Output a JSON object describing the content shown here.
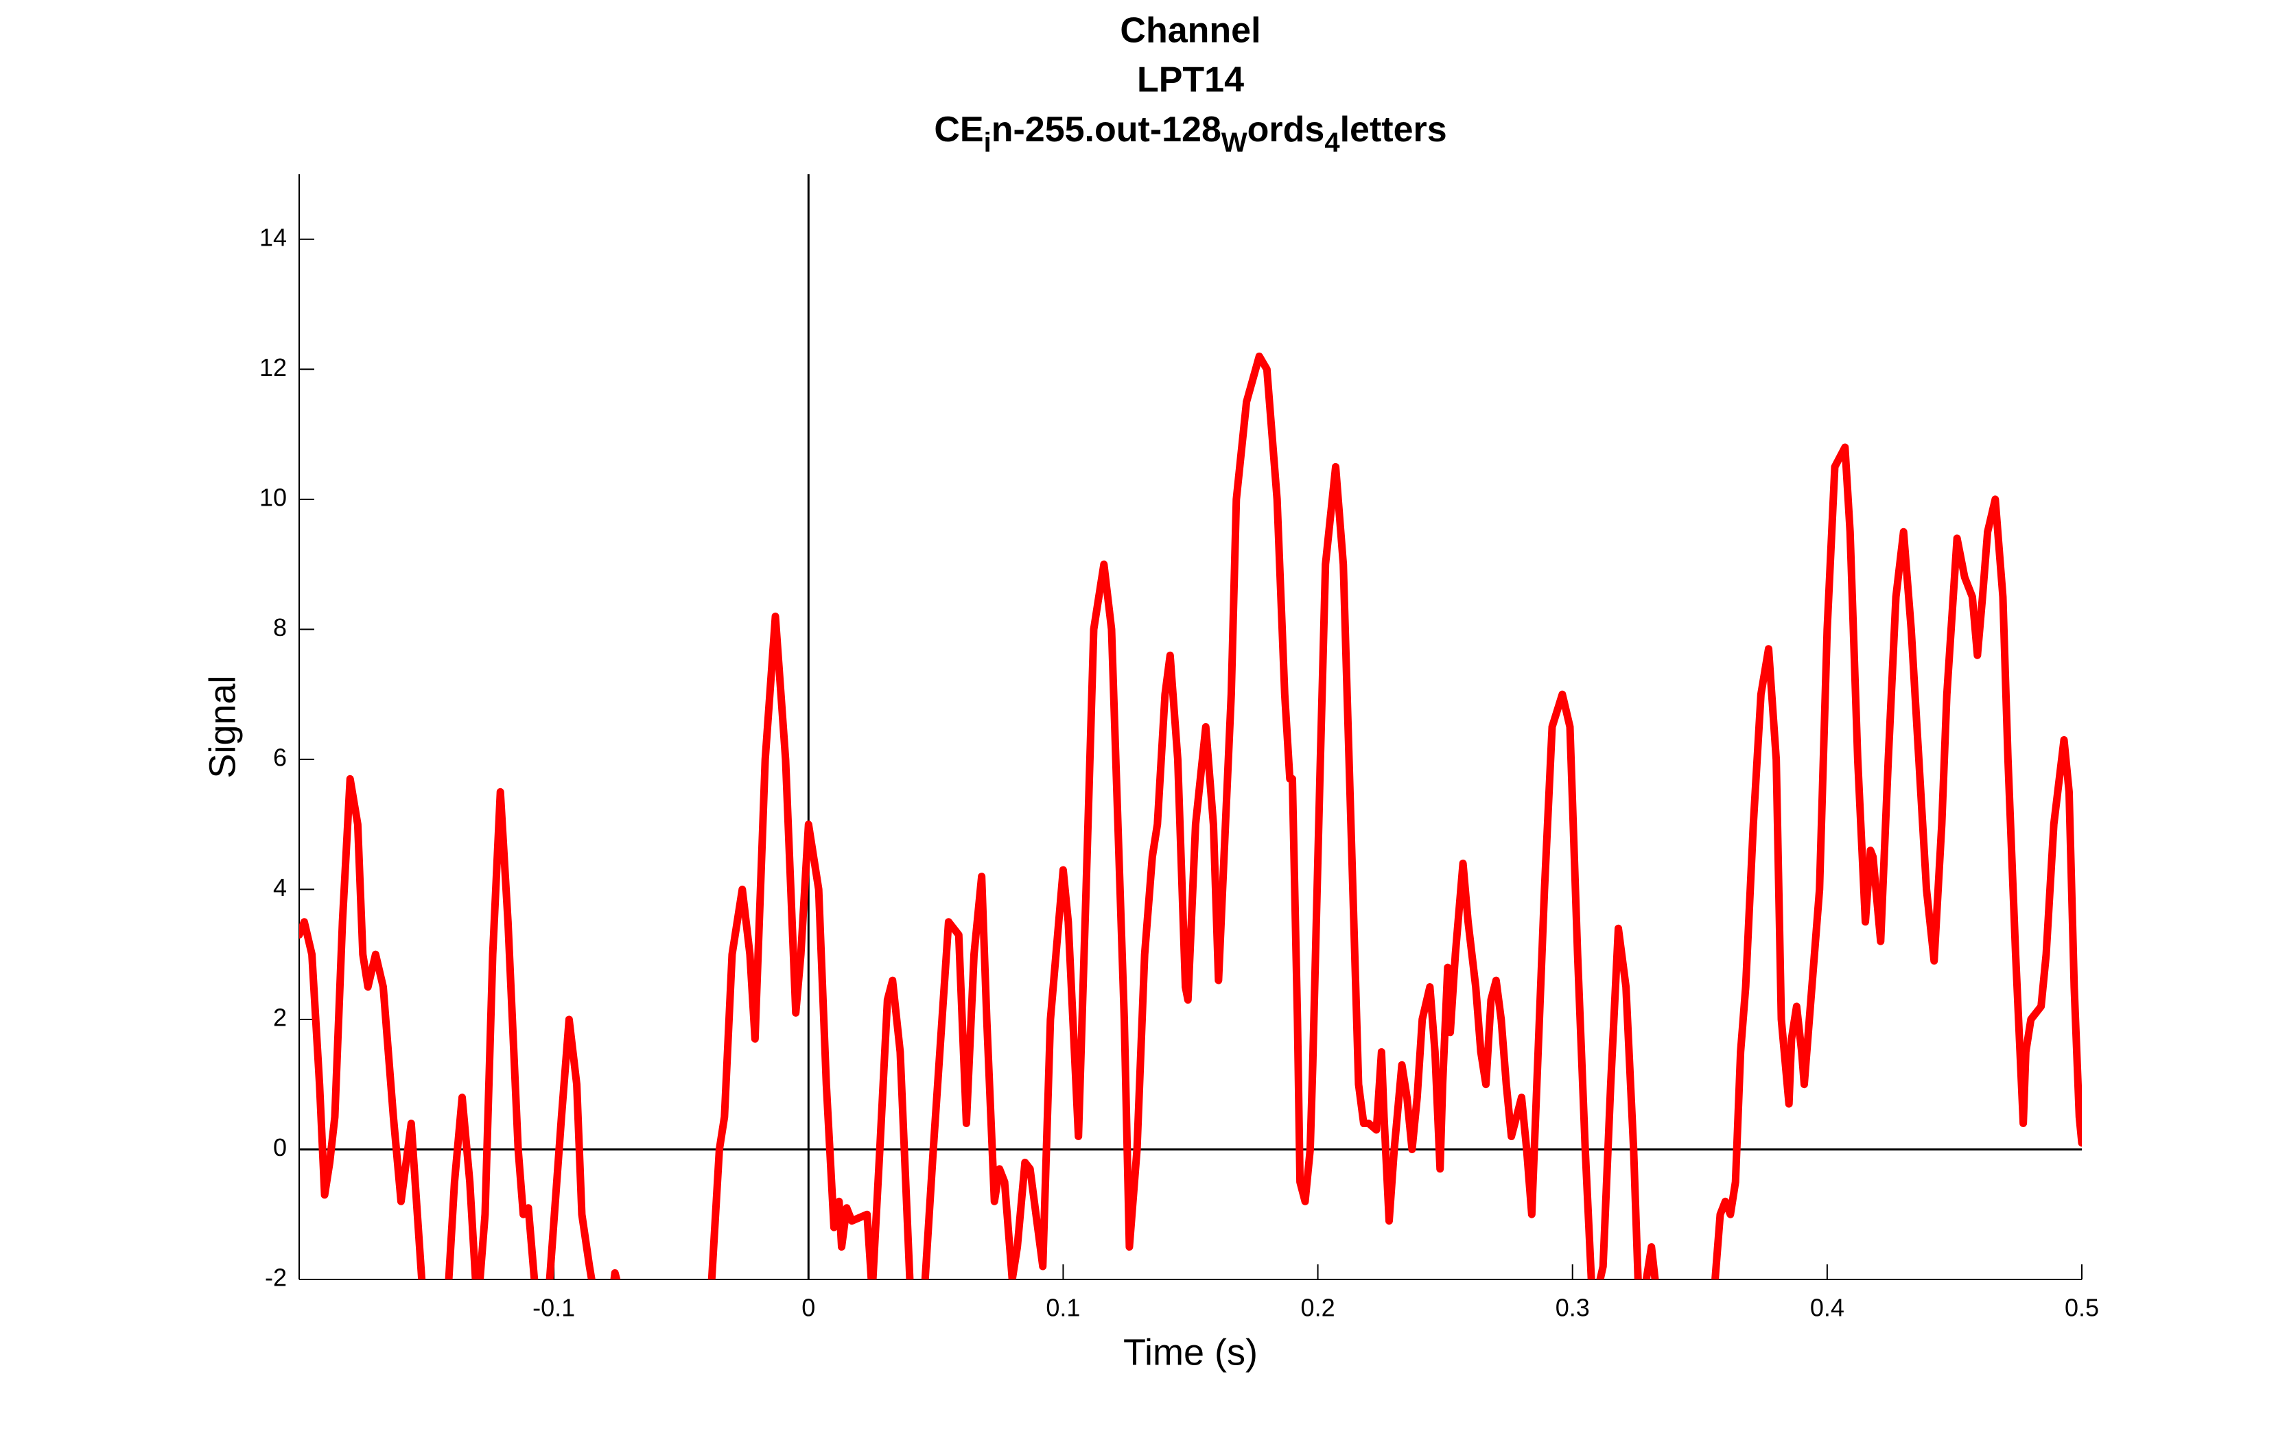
{
  "chart_data": {
    "type": "line",
    "title": [
      "Channel",
      "LPT14",
      [
        "CE",
        "i",
        "n-255.out-128",
        "W",
        "ords",
        "4",
        "letters"
      ]
    ],
    "xlabel": "Time (s)",
    "ylabel": "Signal",
    "xlim": [
      -0.2,
      0.5
    ],
    "ylim": [
      -2,
      15
    ],
    "xticks": [
      -0.1,
      0,
      0.1,
      0.2,
      0.3,
      0.4,
      0.5
    ],
    "yticks": [
      -2,
      0,
      2,
      4,
      6,
      8,
      10,
      12,
      14
    ],
    "zero_lines": true,
    "x": [
      -0.2,
      -0.198,
      -0.195,
      -0.192,
      -0.19,
      -0.188,
      -0.186,
      -0.183,
      -0.18,
      -0.177,
      -0.175,
      -0.173,
      -0.17,
      -0.167,
      -0.163,
      -0.16,
      -0.156,
      -0.151,
      -0.147,
      -0.142,
      -0.139,
      -0.136,
      -0.133,
      -0.13,
      -0.127,
      -0.124,
      -0.121,
      -0.118,
      -0.114,
      -0.112,
      -0.11,
      -0.107,
      -0.102,
      -0.097,
      -0.094,
      -0.091,
      -0.089,
      -0.086,
      -0.083,
      -0.078,
      -0.076,
      -0.074,
      -0.06,
      -0.045,
      -0.038,
      -0.035,
      -0.033,
      -0.03,
      -0.026,
      -0.023,
      -0.021,
      -0.017,
      -0.013,
      -0.009,
      -0.005,
      -0.003,
      0,
      0.004,
      0.007,
      0.01,
      0.012,
      0.013,
      0.015,
      0.017,
      0.023,
      0.025,
      0.028,
      0.031,
      0.033,
      0.036,
      0.04,
      0.045,
      0.049,
      0.055,
      0.059,
      0.062,
      0.065,
      0.068,
      0.07,
      0.073,
      0.075,
      0.077,
      0.08,
      0.082,
      0.085,
      0.087,
      0.09,
      0.092,
      0.095,
      0.1,
      0.102,
      0.106,
      0.109,
      0.112,
      0.116,
      0.119,
      0.124,
      0.126,
      0.129,
      0.132,
      0.135,
      0.137,
      0.14,
      0.142,
      0.145,
      0.148,
      0.149,
      0.152,
      0.156,
      0.159,
      0.161,
      0.166,
      0.168,
      0.172,
      0.177,
      0.18,
      0.184,
      0.187,
      0.189,
      0.19,
      0.192,
      0.193,
      0.195,
      0.197,
      0.198,
      0.201,
      0.203,
      0.207,
      0.21,
      0.213,
      0.216,
      0.218,
      0.22,
      0.223,
      0.225,
      0.226,
      0.228,
      0.23,
      0.233,
      0.235,
      0.237,
      0.239,
      0.241,
      0.244,
      0.246,
      0.248,
      0.249,
      0.251,
      0.252,
      0.254,
      0.257,
      0.259,
      0.262,
      0.264,
      0.266,
      0.268,
      0.27,
      0.272,
      0.274,
      0.276,
      0.278,
      0.28,
      0.282,
      0.284,
      0.286,
      0.289,
      0.292,
      0.296,
      0.299,
      0.302,
      0.305,
      0.308,
      0.312,
      0.315,
      0.318,
      0.321,
      0.324,
      0.326,
      0.329,
      0.331,
      0.333,
      0.34,
      0.352,
      0.356,
      0.358,
      0.36,
      0.362,
      0.364,
      0.366,
      0.368,
      0.371,
      0.374,
      0.377,
      0.38,
      0.382,
      0.385,
      0.386,
      0.388,
      0.39,
      0.391,
      0.394,
      0.397,
      0.4,
      0.403,
      0.407,
      0.409,
      0.412,
      0.415,
      0.417,
      0.418,
      0.421,
      0.424,
      0.427,
      0.43,
      0.433,
      0.436,
      0.439,
      0.442,
      0.445,
      0.447,
      0.451,
      0.454,
      0.457,
      0.459,
      0.461,
      0.463,
      0.466,
      0.469,
      0.471,
      0.474,
      0.477,
      0.478,
      0.48,
      0.484,
      0.486,
      0.489,
      0.493,
      0.495,
      0.497,
      0.499,
      0.5
    ],
    "series": [
      {
        "color": "#ff0000",
        "values": [
          3.3,
          3.5,
          3.0,
          1.0,
          -0.7,
          -0.2,
          0.5,
          3.5,
          5.7,
          5.0,
          3.0,
          2.5,
          3.0,
          2.5,
          0.5,
          -0.8,
          0.4,
          -2.5,
          -3.5,
          -2.5,
          -0.5,
          0.8,
          -0.5,
          -2.5,
          -1.0,
          3.0,
          5.5,
          3.5,
          0.0,
          -1.0,
          -0.9,
          -2.3,
          -2.2,
          0.5,
          2.0,
          1.0,
          -1.0,
          -1.8,
          -2.5,
          -2.5,
          -1.9,
          -2.2,
          -4.0,
          -3.5,
          -2.0,
          0.0,
          0.5,
          3.0,
          4.0,
          3.0,
          1.7,
          6.0,
          8.2,
          6.0,
          2.1,
          3.0,
          5.0,
          4.0,
          1.0,
          -1.2,
          -0.8,
          -1.5,
          -0.9,
          -1.1,
          -1.0,
          -2.2,
          0.0,
          2.3,
          2.6,
          1.5,
          -2.2,
          -2.5,
          0.0,
          3.5,
          3.3,
          0.4,
          3.0,
          4.2,
          2.0,
          -0.8,
          -0.3,
          -0.5,
          -2.0,
          -1.5,
          -0.2,
          -0.3,
          -1.2,
          -1.8,
          2.0,
          4.3,
          3.5,
          0.2,
          4.0,
          8.0,
          9.0,
          8.0,
          2.0,
          -1.5,
          0.0,
          3.0,
          4.5,
          5.0,
          7.0,
          7.6,
          6.0,
          2.5,
          2.3,
          5.0,
          6.5,
          5.0,
          2.6,
          7.0,
          10.0,
          11.5,
          12.2,
          12.0,
          10.0,
          7.0,
          5.7,
          5.7,
          2.0,
          -0.5,
          -0.8,
          0.0,
          1.3,
          6.0,
          9.0,
          10.5,
          9.0,
          5.0,
          1.0,
          0.4,
          0.4,
          0.3,
          1.5,
          0.5,
          -1.1,
          0.0,
          1.3,
          0.8,
          0.0,
          0.8,
          2.0,
          2.5,
          1.5,
          -0.3,
          1.0,
          2.8,
          1.8,
          3.0,
          4.4,
          3.5,
          2.5,
          1.5,
          1.0,
          2.3,
          2.6,
          2.0,
          1.0,
          0.2,
          0.5,
          0.8,
          0.0,
          -1.0,
          1.0,
          4.0,
          6.5,
          7.0,
          6.5,
          3.0,
          0.0,
          -2.5,
          -1.8,
          1.0,
          3.4,
          2.5,
          0.0,
          -2.3,
          -2.0,
          -1.5,
          -2.2,
          -3.5,
          -3.0,
          -2.0,
          -1.0,
          -0.8,
          -1.0,
          -0.5,
          1.5,
          2.5,
          5.0,
          7.0,
          7.7,
          6.0,
          2.0,
          0.7,
          1.7,
          2.2,
          1.5,
          1.0,
          2.5,
          4.0,
          8.0,
          10.5,
          10.8,
          9.5,
          6.0,
          3.5,
          4.6,
          4.5,
          3.2,
          6.0,
          8.5,
          9.5,
          8.0,
          6.0,
          4.0,
          2.9,
          5.0,
          7.0,
          9.4,
          8.8,
          8.5,
          7.6,
          8.5,
          9.5,
          10.0,
          8.5,
          6.0,
          3.0,
          0.4,
          1.5,
          2.0,
          2.2,
          3.0,
          5.0,
          6.3,
          5.5,
          2.5,
          0.5,
          0.1
        ]
      }
    ]
  }
}
